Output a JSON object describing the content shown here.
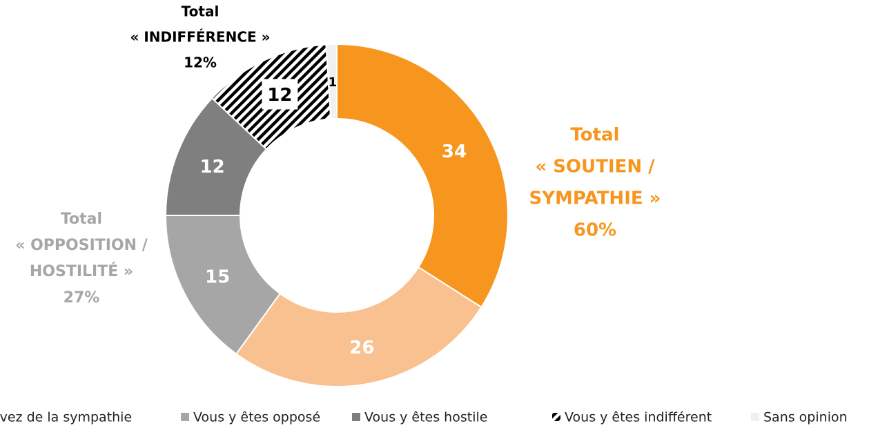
{
  "chart_data": {
    "type": "donut",
    "categories": [
      null,
      "avez de la sympathie",
      "Vous y êtes opposé",
      "Vous y êtes hostile",
      "Vous y êtes indifférent",
      "Sans opinion"
    ],
    "values": [
      34,
      26,
      15,
      12,
      12,
      1
    ],
    "colors": [
      "#F7961E",
      "#F9C190",
      "#A6A6A6",
      "#7F7F7F",
      "hatch",
      "#F0F0F0"
    ],
    "label_colors": [
      "#ffffff",
      "#ffffff",
      "#ffffff",
      "#ffffff",
      "#000000",
      "#000000"
    ],
    "annotations": [
      {
        "lines": [
          "Total",
          "« SOUTIEN /",
          "SYMPATHIE »",
          "60%"
        ],
        "color": "#F7961E"
      },
      {
        "lines": [
          "Total",
          "« OPPOSITION /",
          "HOSTILITÉ »",
          "27%"
        ],
        "color": "#A6A6A6"
      },
      {
        "lines": [
          "Total",
          "« INDIFFÉRENCE »",
          "12%"
        ],
        "color": "#000000"
      }
    ],
    "legend": "bottom"
  }
}
